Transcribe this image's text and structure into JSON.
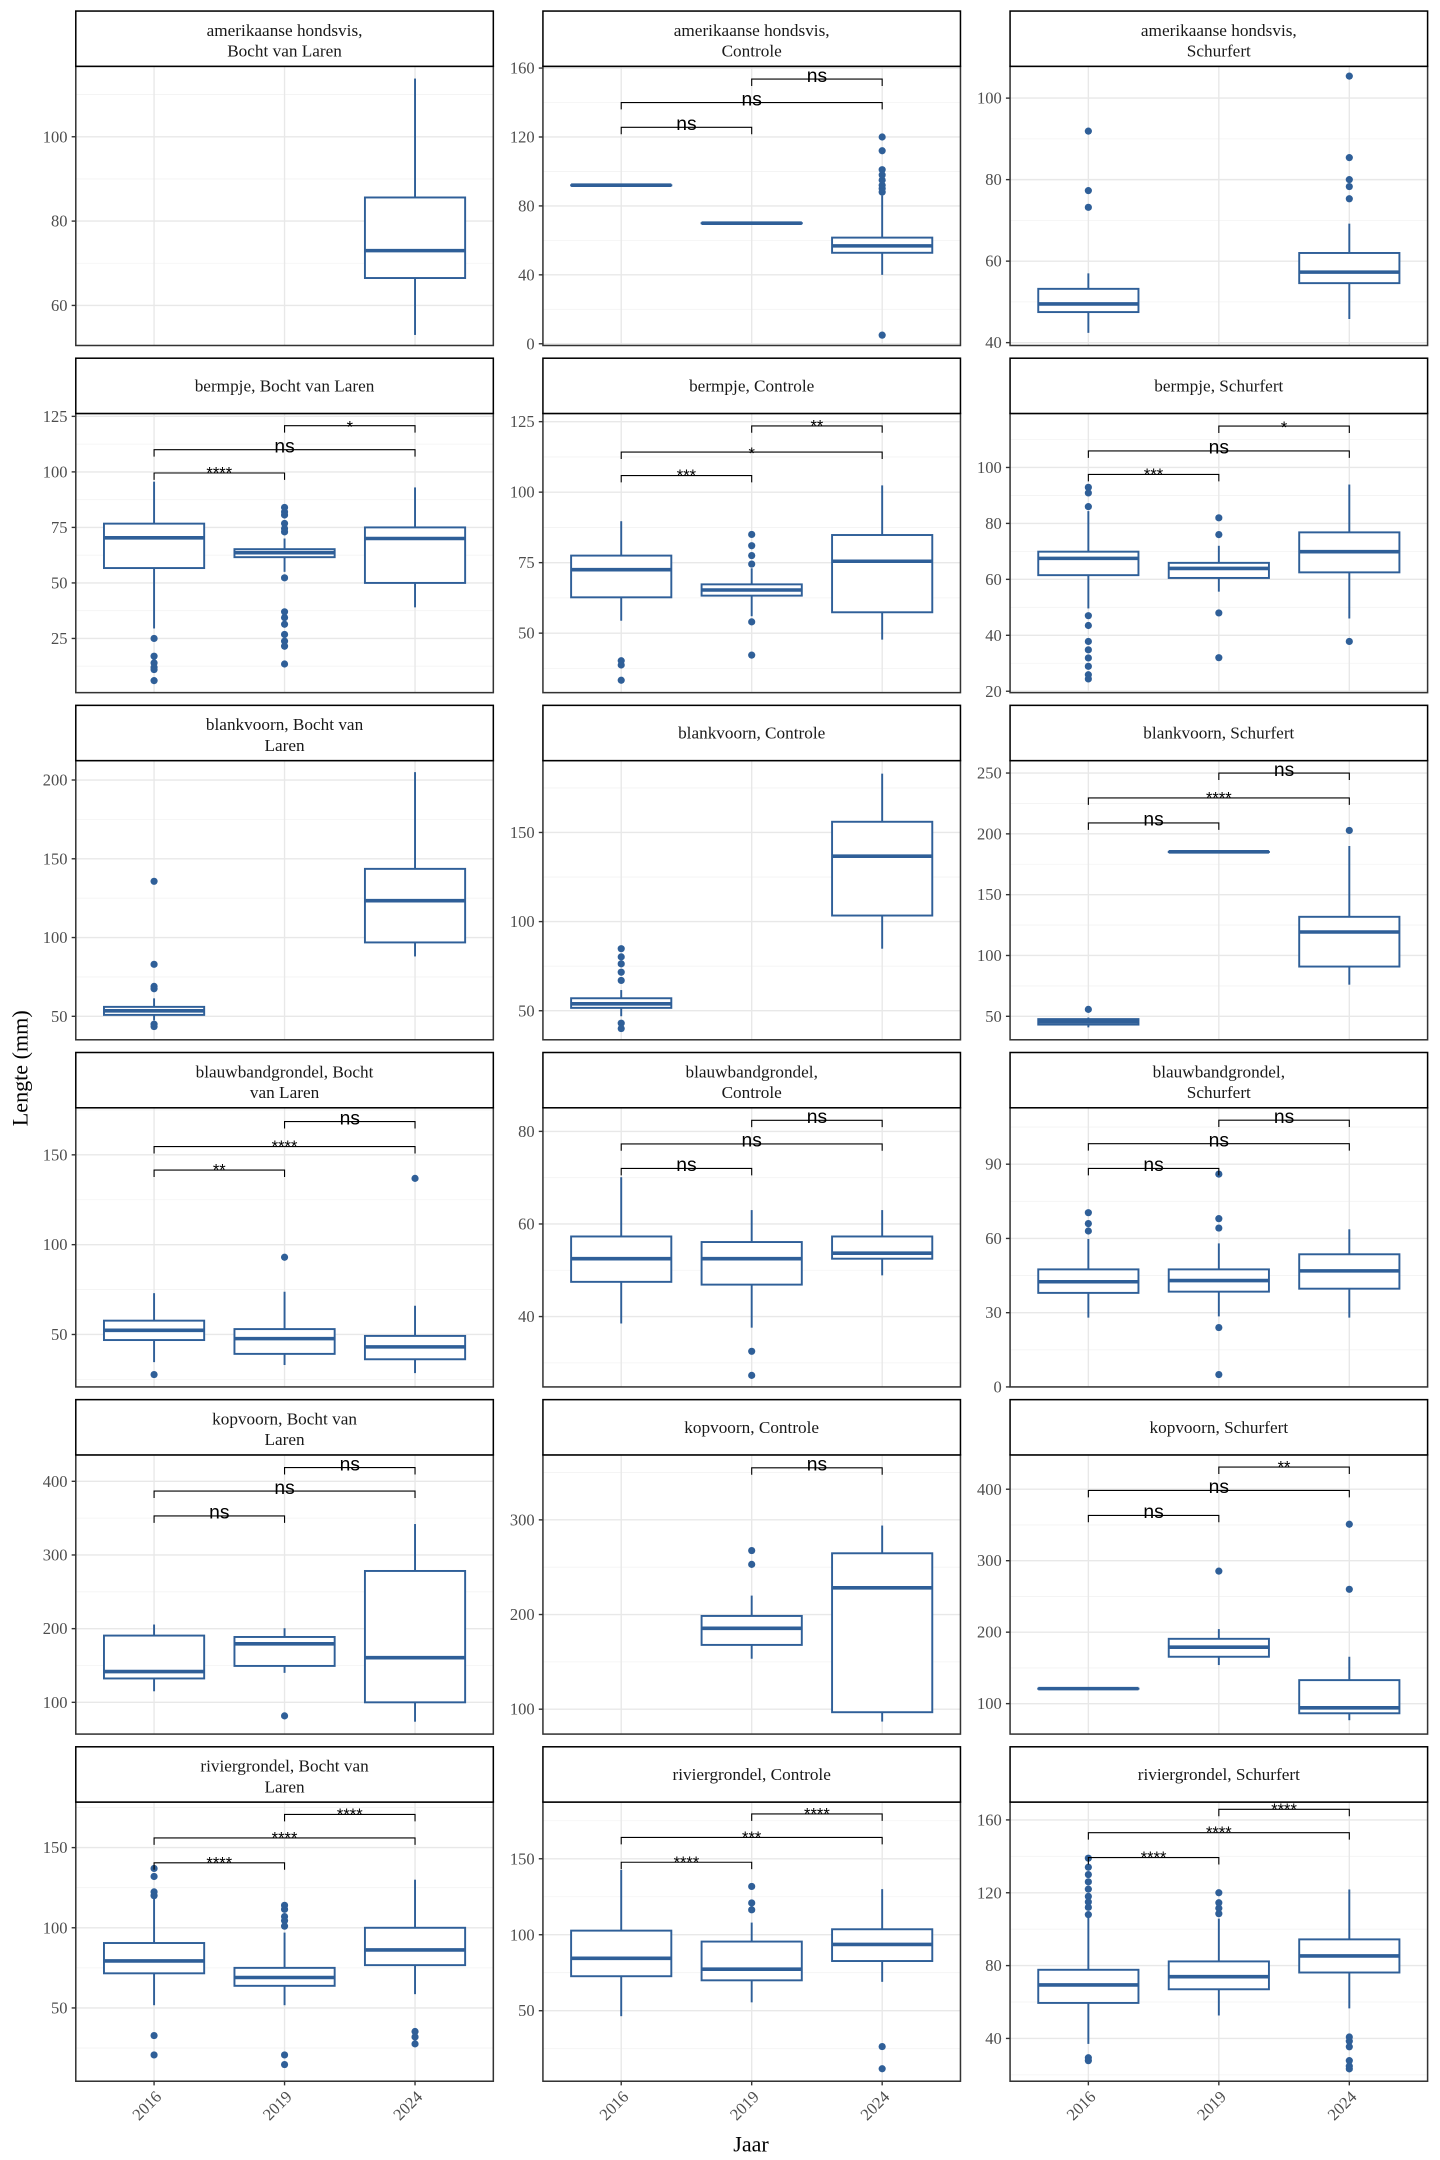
{
  "chart_data": {
    "type": "boxplot",
    "xlabel": "Jaar",
    "ylabel": "Lengte (mm)",
    "categories": [
      "2016",
      "2019",
      "2024"
    ],
    "box_color": "#2F5F98",
    "grid": true,
    "panels": [
      {
        "title": "amerikaanse hondsvis,\nBocht van Laren",
        "yticks": [
          60,
          80,
          100
        ],
        "ylim": [
          50.5,
          116.7
        ],
        "boxes": {
          "2024": [
            53,
            66.5,
            73,
            85.6,
            113.8,
            []
          ]
        },
        "brackets": []
      },
      {
        "title": "amerikaanse hondsvis,\nControle",
        "yticks": [
          0,
          40,
          80,
          120,
          160
        ],
        "ylim": [
          -1,
          161
        ],
        "boxes": {
          "2016": [
            92,
            92,
            92,
            92,
            92,
            []
          ],
          "2019": [
            70,
            70,
            70,
            70,
            70,
            []
          ],
          "2024": [
            40,
            52.8,
            56.8,
            61.6,
            86,
            [
              88,
              90,
              92,
              95,
              98,
              101,
              112,
              120,
              5
            ]
          ]
        },
        "brackets": [
          [
            "2016",
            "2019",
            125.6,
            "ns"
          ],
          [
            "2016",
            "2024",
            140,
            "ns"
          ],
          [
            "2019",
            "2024",
            153.6,
            "ns"
          ]
        ]
      },
      {
        "title": "amerikaanse hondsvis,\nSchurfert",
        "yticks": [
          40,
          60,
          80,
          100
        ],
        "ylim": [
          39.3,
          107.8
        ],
        "boxes": {
          "2016": [
            42.4,
            47.5,
            49.5,
            53.2,
            57,
            [
              91.9,
              77.3,
              73.2
            ]
          ],
          "2024": [
            45.8,
            54.6,
            57.3,
            62,
            69.2,
            [
              105.4,
              85.4,
              80,
              78.3,
              75.3
            ]
          ]
        },
        "brackets": []
      },
      {
        "title": "bermpje, Bocht van Laren",
        "yticks": [
          25,
          50,
          75,
          100,
          125
        ],
        "ylim": [
          0.6,
          126.3
        ],
        "boxes": {
          "2016": [
            29.5,
            56.7,
            70.3,
            76.7,
            95.6,
            [
              25,
              17,
              14,
              12,
              11,
              6
            ]
          ],
          "2019": [
            55,
            61.6,
            63.6,
            65.2,
            70,
            [
              84,
              82,
              80.6,
              76.8,
              74.5,
              73,
              52.3,
              37,
              34.4,
              31.4,
              26.8,
              23.8,
              21.5,
              13.5
            ]
          ],
          "2024": [
            39,
            50,
            70,
            75,
            93,
            []
          ]
        },
        "brackets": [
          [
            "2016",
            "2019",
            99.5,
            "****"
          ],
          [
            "2016",
            "2024",
            110,
            "ns"
          ],
          [
            "2019",
            "2024",
            120.8,
            "*"
          ]
        ]
      },
      {
        "title": "bermpje, Controle",
        "yticks": [
          50,
          75,
          100,
          125
        ],
        "ylim": [
          28.9,
          127.9
        ],
        "boxes": {
          "2016": [
            54.4,
            62.7,
            72.5,
            77.5,
            89.7,
            [
              40.2,
              38.7,
              33.3
            ]
          ],
          "2019": [
            56,
            63.3,
            65.3,
            67.3,
            73,
            [
              85,
              81,
              77.5,
              74.5,
              54,
              42.2
            ]
          ],
          "2024": [
            47.7,
            57.4,
            75.5,
            84.8,
            102.4,
            []
          ]
        },
        "brackets": [
          [
            "2016",
            "2019",
            105.9,
            "***"
          ],
          [
            "2016",
            "2024",
            114.2,
            "*"
          ],
          [
            "2019",
            "2024",
            123.5,
            "**"
          ]
        ]
      },
      {
        "title": "bermpje, Schurfert",
        "yticks": [
          20,
          40,
          60,
          80,
          100
        ],
        "ylim": [
          19.5,
          119.3
        ],
        "boxes": {
          "2016": [
            49.6,
            61.5,
            67.5,
            69.9,
            84.4,
            [
              92.9,
              90.9,
              86,
              47,
              43.5,
              37.8,
              34.8,
              31.9,
              28.9,
              25.9,
              24.4
            ]
          ],
          "2019": [
            55.6,
            60.5,
            63.9,
            65.9,
            72,
            [
              82,
              76,
              48,
              32
            ]
          ],
          "2024": [
            46,
            62.5,
            69.9,
            76.8,
            93.9,
            [
              37.8
            ]
          ]
        },
        "brackets": [
          [
            "2016",
            "2019",
            97.5,
            "***"
          ],
          [
            "2016",
            "2024",
            105.9,
            "ns"
          ],
          [
            "2019",
            "2024",
            114.8,
            "*"
          ]
        ]
      },
      {
        "title": "blankvoorn, Bocht van\nLaren",
        "yticks": [
          50,
          100,
          150,
          200
        ],
        "ylim": [
          35.1,
          212.3
        ],
        "boxes": {
          "2016": [
            47.4,
            50.9,
            53.5,
            56,
            61.4,
            [
              135.7,
              83,
              69,
              67.5,
              45,
              43.5
            ]
          ],
          "2024": [
            88,
            96.9,
            123.4,
            143.6,
            205,
            []
          ]
        },
        "brackets": []
      },
      {
        "title": "blankvoorn, Controle",
        "yticks": [
          50,
          100,
          150
        ],
        "ylim": [
          33.7,
          190.3
        ],
        "boxes": {
          "2016": [
            46.9,
            51.6,
            53.9,
            57,
            61.6,
            [
              84.8,
              80.2,
              76.3,
              71.6,
              67,
              43,
              40
            ]
          ],
          "2024": [
            84.8,
            103.4,
            136.7,
            156,
            183,
            []
          ]
        },
        "brackets": []
      },
      {
        "title": "blankvoorn, Schurfert",
        "yticks": [
          50,
          100,
          150,
          200,
          250
        ],
        "ylim": [
          30.7,
          260.2
        ],
        "boxes": {
          "2016": [
            40.9,
            43.2,
            45.5,
            47.7,
            49,
            [
              55.7
            ]
          ],
          "2019": [
            185.2,
            185.2,
            185.2,
            185.2,
            185.2,
            []
          ],
          "2024": [
            76,
            90.9,
            119.3,
            131.8,
            190,
            [
              202.8
            ]
          ]
        },
        "brackets": [
          [
            "2016",
            "2019",
            209,
            "ns"
          ],
          [
            "2016",
            "2024",
            229.5,
            "****"
          ],
          [
            "2019",
            "2024",
            250,
            "ns"
          ]
        ]
      },
      {
        "title": "blauwbandgrondel, Bocht\nvan Laren",
        "yticks": [
          50,
          100,
          150
        ],
        "ylim": [
          20.8,
          176.2
        ],
        "boxes": {
          "2016": [
            34.6,
            46.9,
            52.3,
            57.7,
            73,
            [
              27.7
            ]
          ],
          "2019": [
            33,
            39.2,
            47.7,
            53,
            73.8,
            [
              93
            ]
          ],
          "2024": [
            28.5,
            36.2,
            43.1,
            49.2,
            66,
            [
              136.9
            ]
          ]
        },
        "brackets": [
          [
            "2016",
            "2019",
            141.5,
            "**"
          ],
          [
            "2016",
            "2024",
            154.6,
            "****"
          ],
          [
            "2019",
            "2024",
            168.5,
            "ns"
          ]
        ]
      },
      {
        "title": "blauwbandgrondel,\nControle",
        "yticks": [
          40,
          60,
          80
        ],
        "ylim": [
          24.8,
          85.1
        ],
        "boxes": {
          "2016": [
            38.5,
            47.5,
            52.5,
            57.3,
            70.1,
            []
          ],
          "2019": [
            37.6,
            46.9,
            52.5,
            56.1,
            63,
            [
              32.5,
              27.3
            ]
          ],
          "2024": [
            48.9,
            52.5,
            53.7,
            57.3,
            63,
            []
          ]
        },
        "brackets": [
          [
            "2016",
            "2019",
            72,
            "ns"
          ],
          [
            "2016",
            "2024",
            77.3,
            "ns"
          ],
          [
            "2019",
            "2024",
            82.4,
            "ns"
          ]
        ]
      },
      {
        "title": "blauwbandgrondel,\nSchurfert",
        "yticks": [
          0,
          30,
          60,
          90
        ],
        "ylim": [
          0,
          112.8
        ],
        "boxes": {
          "2016": [
            28,
            38,
            42.5,
            47.5,
            59.8,
            [
              70.4,
              66,
              63
            ]
          ],
          "2019": [
            28.5,
            38.5,
            43,
            47.5,
            58,
            [
              86,
              68,
              64.2,
              24,
              5
            ]
          ],
          "2024": [
            28,
            39.7,
            46.9,
            53.6,
            63.7,
            []
          ]
        },
        "brackets": [
          [
            "2016",
            "2019",
            88.3,
            "ns"
          ],
          [
            "2016",
            "2024",
            98.3,
            "ns"
          ],
          [
            "2019",
            "2024",
            107.8,
            "ns"
          ]
        ]
      },
      {
        "title": "kopvoorn, Bocht van\nLaren",
        "yticks": [
          100,
          200,
          300,
          400
        ],
        "ylim": [
          56.9,
          435.8
        ],
        "boxes": {
          "2016": [
            115,
            132.4,
            141.8,
            190.6,
            205.6,
            []
          ],
          "2019": [
            140,
            149.4,
            179.4,
            188.7,
            200.6,
            [
              81.6
            ]
          ],
          "2024": [
            73.7,
            100,
            160.6,
            278.3,
            342,
            []
          ]
        },
        "brackets": [
          [
            "2016",
            "2019",
            353,
            "ns"
          ],
          [
            "2016",
            "2024",
            386.7,
            "ns"
          ],
          [
            "2019",
            "2024",
            418.6,
            "ns"
          ]
        ]
      },
      {
        "title": "kopvoorn, Controle",
        "yticks": [
          100,
          200,
          300
        ],
        "ylim": [
          73.7,
          368.6
        ],
        "boxes": {
          "2019": [
            153.3,
            167.9,
            185.4,
            198.5,
            220,
            [
              267.6,
              253
            ]
          ],
          "2024": [
            86.9,
            96.8,
            228.2,
            264.7,
            294,
            []
          ]
        },
        "brackets": [
          [
            "2019",
            "2024",
            355,
            "ns"
          ]
        ]
      },
      {
        "title": "kopvoorn, Schurfert",
        "yticks": [
          100,
          200,
          300,
          400
        ],
        "ylim": [
          57.4,
          448
        ],
        "boxes": {
          "2016": [
            121,
            121,
            121,
            121,
            121,
            []
          ],
          "2019": [
            154,
            165.6,
            179,
            190.7,
            204.3,
            [
              285.4
            ]
          ],
          "2024": [
            76.8,
            86.5,
            94.2,
            132.9,
            165.6,
            [
              351,
              260
            ]
          ]
        },
        "brackets": [
          [
            "2016",
            "2019",
            363.4,
            "ns"
          ],
          [
            "2016",
            "2024",
            398.3,
            "ns"
          ],
          [
            "2019",
            "2024",
            431,
            "**"
          ]
        ]
      },
      {
        "title": "riviergrondel, Bocht van\nLaren",
        "yticks": [
          50,
          100,
          150
        ],
        "ylim": [
          4.3,
          178.4
        ],
        "boxes": {
          "2016": [
            51.7,
            71.6,
            79.3,
            90.5,
            118,
            [
              137,
              132,
              122.4,
              120,
              32.8,
              20.7
            ]
          ],
          "2019": [
            51.7,
            63.8,
            69,
            75,
            97,
            [
              114,
              111.5,
              107,
              104.5,
              101,
              20.7,
              14.7
            ]
          ],
          "2024": [
            58.6,
            76.7,
            86.2,
            100,
            130,
            [
              35.3,
              31.9,
              27.6
            ]
          ]
        },
        "brackets": [
          [
            "2016",
            "2019",
            140.5,
            "****"
          ],
          [
            "2016",
            "2024",
            156,
            "****"
          ],
          [
            "2019",
            "2024",
            170.7,
            "****"
          ]
        ]
      },
      {
        "title": "riviergrondel, Controle",
        "yticks": [
          50,
          100,
          150
        ],
        "ylim": [
          3.6,
          187.3
        ],
        "boxes": {
          "2016": [
            46.4,
            72.7,
            84.5,
            102.7,
            142.7,
            []
          ],
          "2019": [
            55.5,
            70,
            77.3,
            95.5,
            108,
            [
              131.8,
              120.9,
              116.4
            ]
          ],
          "2024": [
            69,
            82.7,
            93.6,
            103.6,
            130,
            [
              26.4,
              11.8
            ]
          ]
        },
        "brackets": [
          [
            "2016",
            "2019",
            147.7,
            "****"
          ],
          [
            "2016",
            "2024",
            164,
            "***"
          ],
          [
            "2019",
            "2024",
            179.5,
            "****"
          ]
        ]
      },
      {
        "title": "riviergrondel, Schurfert",
        "yticks": [
          40,
          80,
          120,
          160
        ],
        "ylim": [
          16.5,
          169.8
        ],
        "boxes": {
          "2016": [
            37,
            59.5,
            69.4,
            77.7,
            106.8,
            [
              139,
              134,
              130,
              126,
              122,
              118,
              115,
              112,
              108,
              29.4,
              27.8
            ]
          ],
          "2019": [
            52.6,
            67,
            73.9,
            82.3,
            105.8,
            [
              120,
              114.5,
              111.5,
              108.5
            ]
          ],
          "2024": [
            56.5,
            76.2,
            85.3,
            94.4,
            121.8,
            [
              40.8,
              38.5,
              35.4,
              27.8,
              24.8,
              23.3
            ]
          ]
        },
        "brackets": [
          [
            "2016",
            "2019",
            139.3,
            "****"
          ],
          [
            "2016",
            "2024",
            153,
            "****"
          ],
          [
            "2019",
            "2024",
            165.8,
            "****"
          ]
        ]
      }
    ]
  }
}
